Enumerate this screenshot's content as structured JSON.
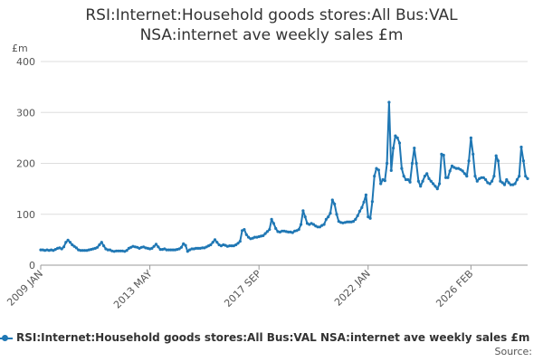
{
  "title": {
    "line1": "RSI:Internet:Household goods stores:All Bus:VAL",
    "line2": "NSA:internet ave weekly sales £m"
  },
  "legend": {
    "label": "RSI:Internet:Household goods stores:All Bus:VAL NSA:internet ave weekly sales £m"
  },
  "source": {
    "label": "Source:"
  },
  "colors": {
    "series": "#1f77b4",
    "grid": "#dddddd",
    "axis": "#999999"
  },
  "chart_data": {
    "type": "line",
    "title": "RSI:Internet:Household goods stores:All Bus:VAL NSA:internet ave weekly sales £m",
    "ylabel": "£m",
    "xlabel": "",
    "ylim": [
      0,
      400
    ],
    "yticks": [
      0,
      100,
      200,
      300,
      400
    ],
    "x_tick_labels": [
      "2009 JAN",
      "2013 MAY",
      "2017 SEP",
      "2022 JAN",
      "2026 FEB"
    ],
    "x_tick_index": [
      0,
      52,
      104,
      156,
      205
    ],
    "grid": true,
    "legend_position": "bottom",
    "series": [
      {
        "name": "RSI:Internet:Household goods stores:All Bus:VAL NSA:internet ave weekly sales £m",
        "values": [
          30,
          30,
          29,
          30,
          29,
          30,
          29,
          31,
          33,
          34,
          32,
          36,
          45,
          49,
          45,
          40,
          37,
          34,
          30,
          29,
          29,
          29,
          29,
          30,
          31,
          32,
          33,
          35,
          40,
          45,
          38,
          32,
          30,
          30,
          28,
          27,
          28,
          28,
          28,
          28,
          27,
          29,
          33,
          35,
          37,
          36,
          35,
          33,
          35,
          36,
          34,
          33,
          32,
          33,
          37,
          41,
          36,
          31,
          31,
          32,
          30,
          30,
          30,
          30,
          30,
          31,
          32,
          35,
          42,
          39,
          27,
          30,
          32,
          32,
          33,
          33,
          33,
          34,
          34,
          36,
          38,
          40,
          45,
          50,
          45,
          40,
          38,
          40,
          39,
          37,
          38,
          38,
          38,
          40,
          43,
          47,
          68,
          70,
          60,
          55,
          52,
          53,
          55,
          55,
          56,
          57,
          58,
          62,
          66,
          70,
          90,
          82,
          72,
          66,
          65,
          67,
          67,
          66,
          65,
          65,
          64,
          67,
          68,
          70,
          80,
          107,
          95,
          82,
          80,
          82,
          80,
          77,
          75,
          75,
          78,
          80,
          90,
          95,
          102,
          128,
          120,
          100,
          86,
          84,
          83,
          84,
          85,
          85,
          85,
          86,
          90,
          97,
          106,
          113,
          124,
          138,
          95,
          92,
          125,
          175,
          190,
          187,
          160,
          168,
          166,
          200,
          320,
          186,
          230,
          254,
          250,
          240,
          190,
          175,
          168,
          168,
          163,
          200,
          230,
          200,
          165,
          155,
          165,
          175,
          180,
          170,
          165,
          160,
          155,
          150,
          160,
          218,
          216,
          172,
          172,
          185,
          195,
          192,
          190,
          190,
          188,
          185,
          180,
          175,
          205,
          250,
          218,
          175,
          165,
          170,
          172,
          172,
          168,
          162,
          160,
          165,
          175,
          215,
          205,
          165,
          162,
          158,
          168,
          162,
          158,
          158,
          160,
          168,
          175,
          232,
          205,
          175,
          170
        ]
      }
    ]
  }
}
